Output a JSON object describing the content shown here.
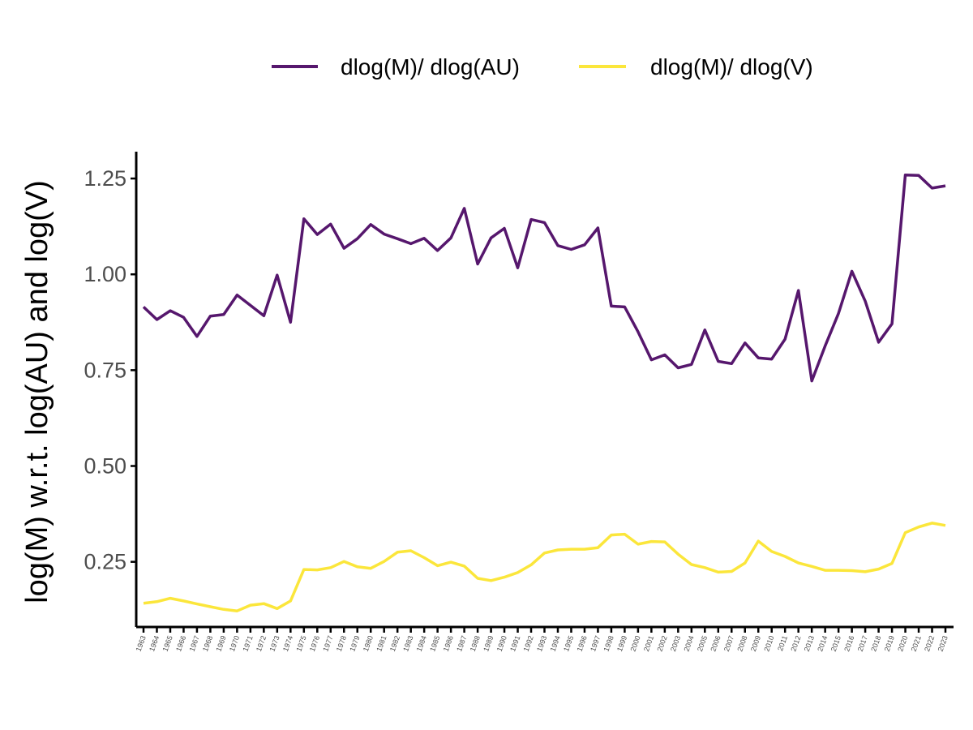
{
  "chart_data": {
    "type": "line",
    "title": "",
    "xlabel": "",
    "ylabel": "log(M) w.r.t. log(AU) and log(V)",
    "ylim": [
      0.08,
      1.32
    ],
    "yticks": [
      "0.25",
      "0.50",
      "0.75",
      "1.00",
      "1.25"
    ],
    "ytick_values": [
      0.25,
      0.5,
      0.75,
      1.0,
      1.25
    ],
    "grid": false,
    "legend_position": "top",
    "x": [
      "1963",
      "1964",
      "1965",
      "1966",
      "1967",
      "1968",
      "1969",
      "1970",
      "1971",
      "1972",
      "1973",
      "1974",
      "1975",
      "1976",
      "1977",
      "1978",
      "1979",
      "1980",
      "1981",
      "1982",
      "1983",
      "1984",
      "1985",
      "1986",
      "1987",
      "1988",
      "1989",
      "1990",
      "1991",
      "1992",
      "1993",
      "1994",
      "1995",
      "1996",
      "1997",
      "1998",
      "1999",
      "2000",
      "2001",
      "2002",
      "2003",
      "2004",
      "2005",
      "2006",
      "2007",
      "2008",
      "2009",
      "2010",
      "2011",
      "2012",
      "2013",
      "2014",
      "2015",
      "2016",
      "2017",
      "2018",
      "2019",
      "2020",
      "2021",
      "2022",
      "2023"
    ],
    "series": [
      {
        "name": "dlog(M)/ dlog(AU)",
        "color": "#56176d",
        "values": [
          0.915,
          0.882,
          0.905,
          0.888,
          0.838,
          0.891,
          0.895,
          0.946,
          0.919,
          0.892,
          0.998,
          0.875,
          1.145,
          1.104,
          1.131,
          1.068,
          1.093,
          1.13,
          1.105,
          1.093,
          1.08,
          1.094,
          1.062,
          1.095,
          1.172,
          1.027,
          1.095,
          1.12,
          1.017,
          1.143,
          1.135,
          1.075,
          1.065,
          1.077,
          1.121,
          0.917,
          0.915,
          0.85,
          0.777,
          0.79,
          0.756,
          0.765,
          0.855,
          0.773,
          0.767,
          0.821,
          0.782,
          0.779,
          0.831,
          0.958,
          0.722,
          0.813,
          0.898,
          1.008,
          0.93,
          0.823,
          0.871,
          1.259,
          1.258,
          1.225,
          1.231
        ]
      },
      {
        "name": "dlog(M)/ dlog(V)",
        "color": "#fbe63b",
        "values": [
          0.142,
          0.146,
          0.155,
          0.148,
          0.14,
          0.133,
          0.126,
          0.122,
          0.137,
          0.141,
          0.128,
          0.148,
          0.23,
          0.229,
          0.235,
          0.251,
          0.237,
          0.233,
          0.251,
          0.275,
          0.279,
          0.261,
          0.24,
          0.249,
          0.239,
          0.207,
          0.201,
          0.21,
          0.222,
          0.242,
          0.273,
          0.281,
          0.283,
          0.283,
          0.287,
          0.32,
          0.322,
          0.296,
          0.303,
          0.302,
          0.27,
          0.243,
          0.235,
          0.223,
          0.225,
          0.247,
          0.304,
          0.277,
          0.264,
          0.247,
          0.238,
          0.228,
          0.228,
          0.227,
          0.224,
          0.231,
          0.246,
          0.326,
          0.341,
          0.351,
          0.345
        ]
      }
    ]
  }
}
